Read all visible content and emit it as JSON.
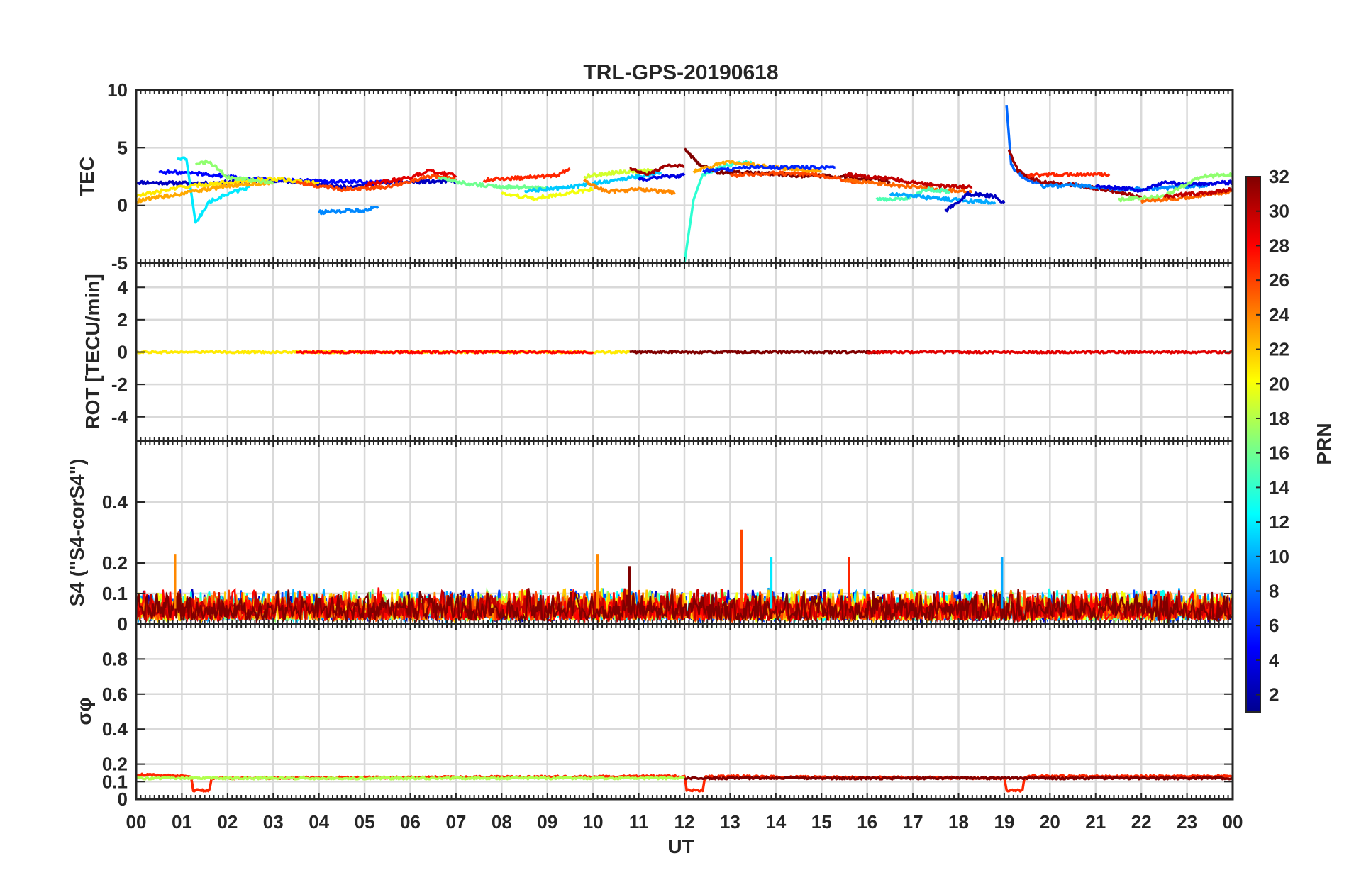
{
  "chart_data": {
    "type": "line",
    "title": "TRL-GPS-20190618",
    "xlabel": "UT",
    "x_ticks": [
      "00",
      "01",
      "02",
      "03",
      "04",
      "05",
      "06",
      "07",
      "08",
      "09",
      "10",
      "11",
      "12",
      "13",
      "14",
      "15",
      "16",
      "17",
      "18",
      "19",
      "20",
      "21",
      "22",
      "23",
      "00"
    ],
    "xlim": [
      0,
      24
    ],
    "colorbar": {
      "label": "PRN",
      "range": [
        1,
        32
      ],
      "ticks": [
        2,
        4,
        6,
        8,
        10,
        12,
        14,
        16,
        18,
        20,
        22,
        24,
        26,
        28,
        30,
        32
      ],
      "colormap": "jet"
    },
    "panels": [
      {
        "name": "tec",
        "ylabel": "TEC",
        "ylim": [
          -5,
          10
        ],
        "yticks": [
          -5,
          0,
          5,
          10
        ],
        "series": [
          {
            "prn": 3,
            "points": [
              [
                0.0,
                2.0
              ],
              [
                1.5,
                1.9
              ],
              [
                3.0,
                2.2
              ],
              [
                4.5,
                1.6
              ],
              [
                5.5,
                2.0
              ],
              [
                7.0,
                2.1
              ]
            ]
          },
          {
            "prn": 5,
            "points": [
              [
                0.5,
                2.9
              ],
              [
                1.3,
                2.8
              ],
              [
                2.5,
                2.3
              ],
              [
                4.0,
                2.1
              ],
              [
                5.4,
                2.0
              ]
            ]
          },
          {
            "prn": 9,
            "points": [
              [
                4.0,
                -0.6
              ],
              [
                4.5,
                -0.5
              ],
              [
                5.0,
                -0.4
              ],
              [
                5.3,
                -0.1
              ]
            ]
          },
          {
            "prn": 12,
            "points": [
              [
                0.9,
                4.1
              ],
              [
                1.1,
                4.0
              ],
              [
                1.3,
                -1.5
              ],
              [
                1.6,
                0.3
              ],
              [
                2.0,
                1.0
              ],
              [
                2.5,
                1.6
              ]
            ]
          },
          {
            "prn": 21,
            "points": [
              [
                0.0,
                0.8
              ],
              [
                1.0,
                1.6
              ],
              [
                2.0,
                2.0
              ],
              [
                3.0,
                2.3
              ],
              [
                4.0,
                1.9
              ]
            ]
          },
          {
            "prn": 23,
            "points": [
              [
                0.0,
                0.4
              ],
              [
                1.0,
                1.0
              ],
              [
                2.0,
                1.7
              ],
              [
                3.0,
                2.0
              ]
            ]
          },
          {
            "prn": 17,
            "points": [
              [
                1.3,
                3.6
              ],
              [
                1.6,
                3.8
              ],
              [
                2.0,
                2.4
              ],
              [
                3.0,
                2.0
              ]
            ]
          },
          {
            "prn": 26,
            "points": [
              [
                3.5,
                2.0
              ],
              [
                4.5,
                1.4
              ],
              [
                5.5,
                1.6
              ],
              [
                6.5,
                2.6
              ],
              [
                7.0,
                2.3
              ]
            ]
          },
          {
            "prn": 29,
            "points": [
              [
                5.0,
                1.8
              ],
              [
                6.0,
                2.4
              ],
              [
                6.4,
                3.0
              ],
              [
                7.0,
                2.6
              ]
            ]
          },
          {
            "prn": 16,
            "points": [
              [
                6.6,
                2.4
              ],
              [
                7.2,
                1.9
              ],
              [
                8.0,
                1.6
              ],
              [
                9.0,
                1.5
              ]
            ]
          },
          {
            "prn": 20,
            "points": [
              [
                8.0,
                1.0
              ],
              [
                8.7,
                0.6
              ],
              [
                9.5,
                1.1
              ],
              [
                10.0,
                1.4
              ]
            ]
          },
          {
            "prn": 27,
            "points": [
              [
                7.6,
                2.2
              ],
              [
                8.5,
                2.4
              ],
              [
                9.2,
                2.6
              ],
              [
                9.5,
                3.2
              ]
            ]
          },
          {
            "prn": 11,
            "points": [
              [
                8.5,
                1.2
              ],
              [
                9.5,
                1.6
              ],
              [
                10.5,
                2.2
              ],
              [
                11.5,
                2.8
              ]
            ]
          },
          {
            "prn": 24,
            "points": [
              [
                9.8,
                2.1
              ],
              [
                10.3,
                1.2
              ],
              [
                11.0,
                1.4
              ],
              [
                11.8,
                1.1
              ]
            ]
          },
          {
            "prn": 19,
            "points": [
              [
                9.8,
                2.5
              ],
              [
                10.6,
                2.9
              ],
              [
                11.3,
                3.0
              ]
            ]
          },
          {
            "prn": 31,
            "points": [
              [
                10.8,
                3.2
              ],
              [
                11.2,
                2.7
              ],
              [
                11.6,
                3.4
              ],
              [
                12.0,
                3.4
              ]
            ]
          },
          {
            "prn": 4,
            "points": [
              [
                11.0,
                2.2
              ],
              [
                11.5,
                2.5
              ],
              [
                12.0,
                2.6
              ]
            ]
          },
          {
            "prn": 14,
            "points": [
              [
                12.0,
                -5.0
              ],
              [
                12.2,
                0.5
              ],
              [
                12.4,
                2.7
              ],
              [
                13.0,
                3.6
              ],
              [
                13.5,
                3.7
              ]
            ]
          },
          {
            "prn": 32,
            "points": [
              [
                12.0,
                4.9
              ],
              [
                12.3,
                3.6
              ],
              [
                12.7,
                2.9
              ],
              [
                13.5,
                2.8
              ],
              [
                14.5,
                2.6
              ],
              [
                15.5,
                2.5
              ],
              [
                16.5,
                2.1
              ]
            ]
          },
          {
            "prn": 23,
            "points": [
              [
                12.2,
                3.0
              ],
              [
                13.0,
                3.8
              ],
              [
                14.0,
                3.3
              ],
              [
                15.0,
                2.9
              ]
            ]
          },
          {
            "prn": 6,
            "points": [
              [
                12.4,
                3.0
              ],
              [
                13.5,
                3.3
              ],
              [
                14.5,
                3.3
              ],
              [
                15.3,
                3.3
              ]
            ]
          },
          {
            "prn": 26,
            "points": [
              [
                13.0,
                2.6
              ],
              [
                14.0,
                2.8
              ],
              [
                15.0,
                2.6
              ],
              [
                15.8,
                2.0
              ]
            ]
          },
          {
            "prn": 25,
            "points": [
              [
                15.5,
                2.2
              ],
              [
                16.5,
                1.8
              ],
              [
                17.5,
                1.4
              ],
              [
                18.3,
                1.2
              ]
            ]
          },
          {
            "prn": 30,
            "points": [
              [
                15.5,
                2.7
              ],
              [
                16.5,
                2.3
              ],
              [
                17.5,
                1.7
              ],
              [
                18.3,
                1.6
              ]
            ]
          },
          {
            "prn": 15,
            "points": [
              [
                16.2,
                0.5
              ],
              [
                16.8,
                0.5
              ],
              [
                17.3,
                1.4
              ],
              [
                17.8,
                1.2
              ]
            ]
          },
          {
            "prn": 10,
            "points": [
              [
                16.5,
                1.0
              ],
              [
                17.5,
                0.6
              ],
              [
                18.2,
                0.4
              ],
              [
                18.8,
                0.3
              ]
            ]
          },
          {
            "prn": 3,
            "points": [
              [
                17.7,
                -0.5
              ],
              [
                18.2,
                1.0
              ],
              [
                18.8,
                0.8
              ],
              [
                19.0,
                0.2
              ]
            ]
          },
          {
            "prn": 8,
            "points": [
              [
                19.05,
                8.7
              ],
              [
                19.15,
                3.5
              ],
              [
                19.3,
                2.8
              ],
              [
                19.6,
                2.0
              ],
              [
                20.0,
                1.9
              ]
            ]
          },
          {
            "prn": 31,
            "points": [
              [
                19.1,
                4.8
              ],
              [
                19.3,
                3.0
              ],
              [
                19.8,
                2.0
              ],
              [
                20.5,
                1.8
              ],
              [
                21.5,
                1.2
              ],
              [
                22.0,
                0.6
              ]
            ]
          },
          {
            "prn": 27,
            "points": [
              [
                19.5,
                2.6
              ],
              [
                20.5,
                2.7
              ],
              [
                21.3,
                2.7
              ]
            ]
          },
          {
            "prn": 9,
            "points": [
              [
                19.8,
                1.6
              ],
              [
                20.5,
                1.8
              ],
              [
                21.5,
                1.4
              ],
              [
                22.5,
                1.5
              ],
              [
                23.5,
                1.8
              ]
            ]
          },
          {
            "prn": 4,
            "points": [
              [
                21.0,
                1.7
              ],
              [
                22.0,
                1.3
              ],
              [
                22.5,
                2.0
              ],
              [
                23.0,
                1.8
              ],
              [
                24.0,
                2.0
              ]
            ]
          },
          {
            "prn": 17,
            "points": [
              [
                21.5,
                0.5
              ],
              [
                22.5,
                0.8
              ],
              [
                23.3,
                2.5
              ],
              [
                24.0,
                2.7
              ]
            ]
          },
          {
            "prn": 25,
            "points": [
              [
                22.0,
                0.4
              ],
              [
                22.8,
                0.6
              ],
              [
                23.5,
                1.0
              ],
              [
                24.0,
                1.2
              ]
            ]
          },
          {
            "prn": 30,
            "points": [
              [
                22.5,
                0.8
              ],
              [
                23.5,
                1.1
              ],
              [
                24.0,
                1.4
              ]
            ]
          }
        ]
      },
      {
        "name": "rot",
        "ylabel": "ROT [TECU/min]",
        "ylim": [
          -5.5,
          5.5
        ],
        "yticks": [
          -4,
          -2,
          0,
          2,
          4
        ],
        "series": [
          {
            "prn": 21,
            "points": [
              [
                0.0,
                0.0
              ],
              [
                10.8,
                0.0
              ]
            ]
          },
          {
            "prn": 28,
            "points": [
              [
                3.5,
                0.0
              ],
              [
                10.0,
                0.0
              ]
            ]
          },
          {
            "prn": 32,
            "points": [
              [
                10.8,
                0.0
              ],
              [
                16.5,
                0.0
              ]
            ]
          },
          {
            "prn": 29,
            "points": [
              [
                16.0,
                0.0
              ],
              [
                24.0,
                0.0
              ]
            ]
          }
        ]
      },
      {
        "name": "s4",
        "ylabel": "S4 (\"S4-corS4\")",
        "ylim": [
          0,
          0.6
        ],
        "yticks": [
          0,
          0.1,
          0.2,
          0.4
        ],
        "typical_band": [
          0.01,
          0.12
        ],
        "spikes": [
          {
            "x": 0.85,
            "value": 0.23,
            "prn": 24
          },
          {
            "x": 10.1,
            "value": 0.23,
            "prn": 24
          },
          {
            "x": 10.8,
            "value": 0.19,
            "prn": 32
          },
          {
            "x": 13.25,
            "value": 0.31,
            "prn": 26
          },
          {
            "x": 13.9,
            "value": 0.22,
            "prn": 12
          },
          {
            "x": 15.6,
            "value": 0.22,
            "prn": 27
          },
          {
            "x": 18.95,
            "value": 0.22,
            "prn": 10
          }
        ]
      },
      {
        "name": "sigma_phi",
        "ylabel": "σφ",
        "ylim": [
          0,
          1
        ],
        "yticks": [
          0,
          0.1,
          0.2,
          0.4,
          0.6,
          0.8
        ],
        "series": [
          {
            "prn": 27,
            "points": [
              [
                0.0,
                0.14
              ],
              [
                1.2,
                0.13
              ],
              [
                1.25,
                0.05
              ],
              [
                1.6,
                0.05
              ],
              [
                1.65,
                0.12
              ],
              [
                12.0,
                0.13
              ],
              [
                12.05,
                0.05
              ],
              [
                12.4,
                0.05
              ],
              [
                12.45,
                0.13
              ],
              [
                19.0,
                0.12
              ],
              [
                19.05,
                0.05
              ],
              [
                19.4,
                0.05
              ],
              [
                19.45,
                0.13
              ],
              [
                24.0,
                0.13
              ]
            ]
          },
          {
            "prn": 18,
            "points": [
              [
                0.0,
                0.12
              ],
              [
                1.6,
                0.12
              ],
              [
                12.0,
                0.12
              ]
            ]
          },
          {
            "prn": 32,
            "points": [
              [
                12.0,
                0.12
              ],
              [
                19.0,
                0.12
              ],
              [
                24.0,
                0.12
              ]
            ]
          }
        ]
      }
    ]
  }
}
